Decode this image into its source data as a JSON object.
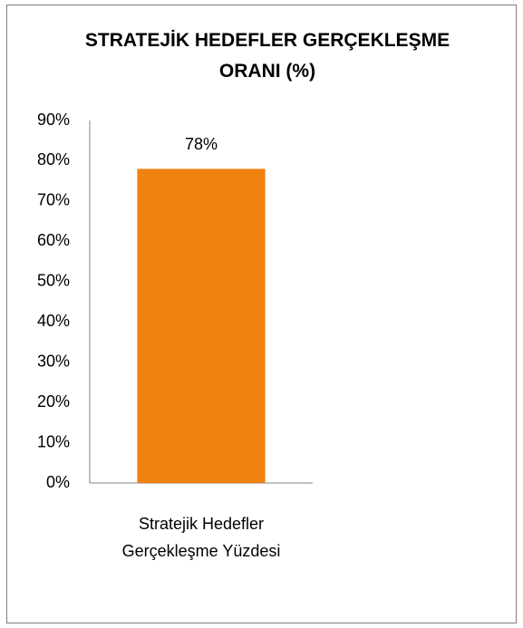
{
  "chart_data": {
    "type": "bar",
    "title": "STRATEJİK HEDEFLER GERÇEKLEŞME ORANI (%)",
    "categories": [
      "Stratejik Hedefler Gerçekleşme Yüzdesi"
    ],
    "values": [
      78
    ],
    "value_labels": [
      "78%"
    ],
    "color": "#f0820f",
    "ylim": [
      0,
      90
    ],
    "yticks": [
      {
        "value": 0,
        "label": "0%"
      },
      {
        "value": 10,
        "label": "10%"
      },
      {
        "value": 20,
        "label": "20%"
      },
      {
        "value": 30,
        "label": "30%"
      },
      {
        "value": 40,
        "label": "40%"
      },
      {
        "value": 50,
        "label": "50%"
      },
      {
        "value": 60,
        "label": "60%"
      },
      {
        "value": 70,
        "label": "70%"
      },
      {
        "value": 80,
        "label": "80%"
      },
      {
        "value": 90,
        "label": "90%"
      }
    ],
    "grid": false
  }
}
